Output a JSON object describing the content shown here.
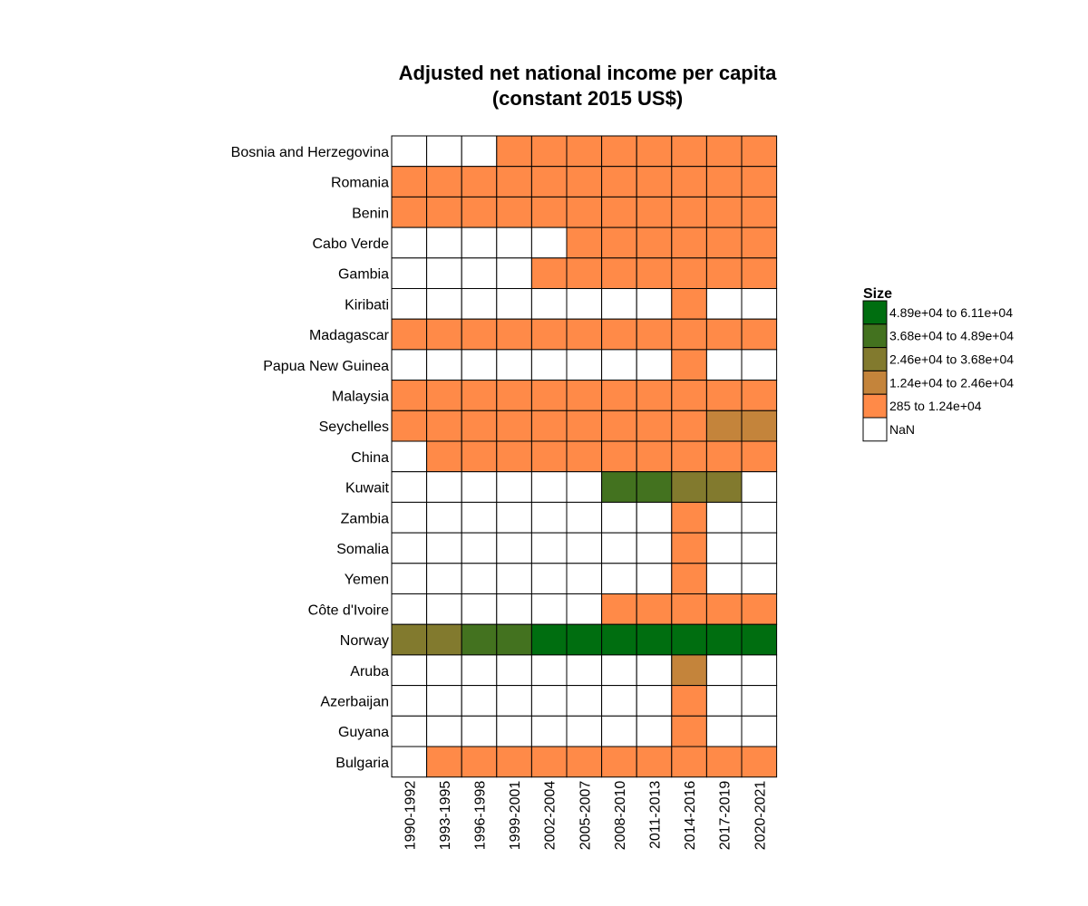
{
  "chart_data": {
    "type": "heatmap",
    "title": "Adjusted net national income per capita",
    "subtitle": "(constant 2015 US$)",
    "xlabel": "",
    "ylabel": "",
    "x_categories": [
      "1990-1992",
      "1993-1995",
      "1996-1998",
      "1999-2001",
      "2002-2004",
      "2005-2007",
      "2008-2010",
      "2011-2013",
      "2014-2016",
      "2017-2019",
      "2020-2021"
    ],
    "y_categories": [
      "Bosnia and Herzegovina",
      "Romania",
      "Benin",
      "Cabo Verde",
      "Gambia",
      "Kiribati",
      "Madagascar",
      "Papua New Guinea",
      "Malaysia",
      "Seychelles",
      "China",
      "Kuwait",
      "Zambia",
      "Somalia",
      "Yemen",
      "Côte d'Ivoire",
      "Norway",
      "Aruba",
      "Azerbaijan",
      "Guyana",
      "Bulgaria"
    ],
    "cell_bins": [
      [
        0,
        0,
        0,
        1,
        1,
        1,
        1,
        1,
        1,
        1,
        1
      ],
      [
        1,
        1,
        1,
        1,
        1,
        1,
        1,
        1,
        1,
        1,
        1
      ],
      [
        1,
        1,
        1,
        1,
        1,
        1,
        1,
        1,
        1,
        1,
        1
      ],
      [
        0,
        0,
        0,
        0,
        0,
        1,
        1,
        1,
        1,
        1,
        1
      ],
      [
        0,
        0,
        0,
        0,
        1,
        1,
        1,
        1,
        1,
        1,
        1
      ],
      [
        0,
        0,
        0,
        0,
        0,
        0,
        0,
        0,
        1,
        0,
        0
      ],
      [
        1,
        1,
        1,
        1,
        1,
        1,
        1,
        1,
        1,
        1,
        1
      ],
      [
        0,
        0,
        0,
        0,
        0,
        0,
        0,
        0,
        1,
        0,
        0
      ],
      [
        1,
        1,
        1,
        1,
        1,
        1,
        1,
        1,
        1,
        1,
        1
      ],
      [
        1,
        1,
        1,
        1,
        1,
        1,
        1,
        1,
        1,
        2,
        2
      ],
      [
        0,
        1,
        1,
        1,
        1,
        1,
        1,
        1,
        1,
        1,
        1
      ],
      [
        0,
        0,
        0,
        0,
        0,
        0,
        4,
        4,
        3,
        3,
        0
      ],
      [
        0,
        0,
        0,
        0,
        0,
        0,
        0,
        0,
        1,
        0,
        0
      ],
      [
        0,
        0,
        0,
        0,
        0,
        0,
        0,
        0,
        1,
        0,
        0
      ],
      [
        0,
        0,
        0,
        0,
        0,
        0,
        0,
        0,
        1,
        0,
        0
      ],
      [
        0,
        0,
        0,
        0,
        0,
        0,
        1,
        1,
        1,
        1,
        1
      ],
      [
        3,
        3,
        4,
        4,
        5,
        5,
        5,
        5,
        5,
        5,
        5
      ],
      [
        0,
        0,
        0,
        0,
        0,
        0,
        0,
        0,
        2,
        0,
        0
      ],
      [
        0,
        0,
        0,
        0,
        0,
        0,
        0,
        0,
        1,
        0,
        0
      ],
      [
        0,
        0,
        0,
        0,
        0,
        0,
        0,
        0,
        1,
        0,
        0
      ],
      [
        0,
        1,
        1,
        1,
        1,
        1,
        1,
        1,
        1,
        1,
        1
      ]
    ],
    "bin_colors": {
      "0": "#ffffff",
      "1": "#ff8a48",
      "2": "#c4843b",
      "3": "#827a2e",
      "4": "#43721f",
      "5": "#006e10"
    },
    "legend": {
      "title": "Size",
      "placement": "right",
      "entries": [
        {
          "bin": 5,
          "label": "4.89e+04 to 6.11e+04"
        },
        {
          "bin": 4,
          "label": "3.68e+04 to 4.89e+04"
        },
        {
          "bin": 3,
          "label": "2.46e+04 to 3.68e+04"
        },
        {
          "bin": 2,
          "label": "1.24e+04 to 2.46e+04"
        },
        {
          "bin": 1,
          "label": "285 to 1.24e+04"
        },
        {
          "bin": 0,
          "label": "NaN"
        }
      ]
    },
    "grid": false
  }
}
